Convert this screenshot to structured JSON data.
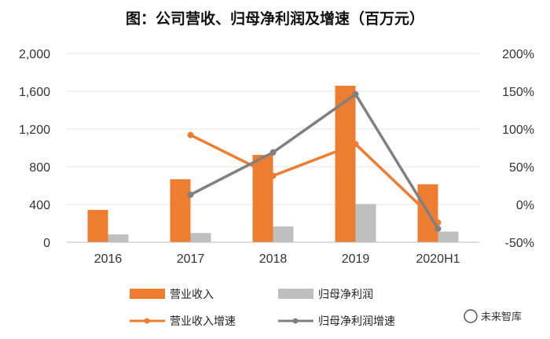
{
  "chart_data": {
    "type": "bar",
    "title": "图：公司营收、归母净利润及增速（百万元）",
    "categories": [
      "2016",
      "2017",
      "2018",
      "2019",
      "2020H1"
    ],
    "y_left": {
      "ylim": [
        0,
        2000
      ],
      "ticks": [
        "2,000",
        "1,600",
        "1,200",
        "800",
        "400",
        "0"
      ],
      "tick_values": [
        2000,
        1600,
        1200,
        800,
        400,
        0
      ]
    },
    "y_right": {
      "ylim": [
        -50,
        200
      ],
      "ticks": [
        "200%",
        "150%",
        "100%",
        "50%",
        "0%",
        "-50%"
      ],
      "tick_values": [
        200,
        150,
        100,
        50,
        0,
        -50
      ]
    },
    "bar_series": [
      {
        "name": "营业收入",
        "color": "#ED7D31",
        "values": [
          343,
          668,
          925,
          1658,
          614
        ]
      },
      {
        "name": "归母净利润",
        "color": "#BFBFBF",
        "values": [
          83,
          98,
          168,
          405,
          113
        ]
      }
    ],
    "line_series": [
      {
        "name": "营业收入增速",
        "color": "#ED7D31",
        "axis": "right",
        "values": [
          null,
          92,
          38,
          80,
          -24
        ]
      },
      {
        "name": "归母净利润增速",
        "color": "#808080",
        "axis": "right",
        "values": [
          null,
          13,
          69,
          146,
          -32
        ]
      }
    ]
  },
  "watermark": {
    "text": "未来智库"
  }
}
